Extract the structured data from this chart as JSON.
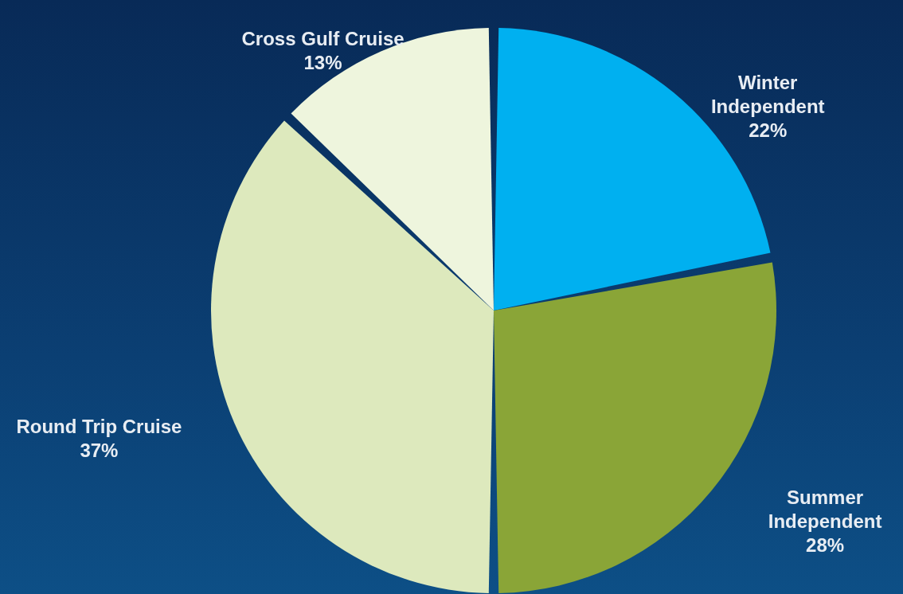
{
  "chart_data": {
    "type": "pie",
    "categories": [
      "Winter Independent",
      "Summer Independent",
      "Round Trip Cruise",
      "Cross Gulf Cruise"
    ],
    "values": [
      22,
      28,
      37,
      13
    ],
    "value_labels": [
      "22%",
      "28%",
      "37%",
      "13%"
    ],
    "colors": [
      "#00b0f0",
      "#8aa537",
      "#dde9bd",
      "#eef5dd"
    ]
  }
}
